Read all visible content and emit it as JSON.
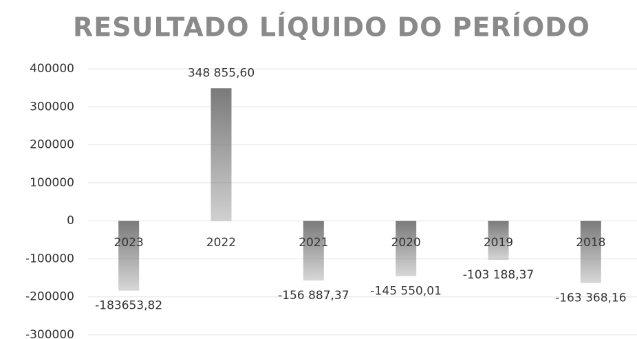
{
  "chart_data": {
    "type": "bar",
    "title": "RESULTADO LÍQUIDO DO PERÍODO",
    "categories": [
      "2023",
      "2022",
      "2021",
      "2020",
      "2019",
      "2018"
    ],
    "values": [
      -183653.82,
      348855.6,
      -156887.37,
      -145550.01,
      -103188.37,
      -163368.16
    ],
    "value_labels": [
      "-183653,82",
      "348 855,60",
      "-156 887,37",
      "-145 550,01",
      "-103 188,37",
      "-163 368,16"
    ],
    "color": "#7a7a7a",
    "ylim": [
      -300000,
      400000
    ],
    "yticks": [
      400000,
      300000,
      200000,
      100000,
      0,
      -100000,
      -200000,
      -300000
    ],
    "grid": true
  }
}
